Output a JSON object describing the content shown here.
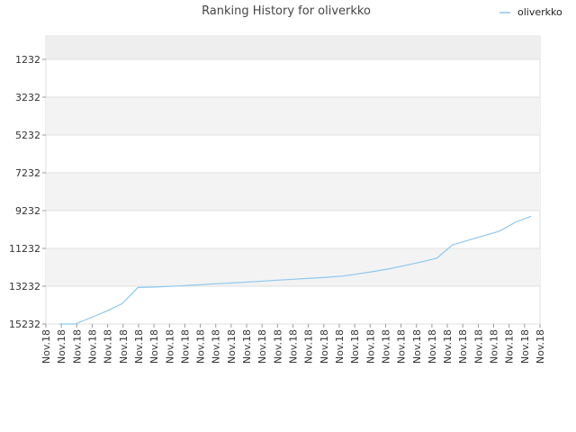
{
  "chart_data": {
    "type": "line",
    "title": "Ranking History for oliverkko",
    "xlabel": "",
    "ylabel": "",
    "y_inverted": true,
    "ylim": [
      15232,
      1232
    ],
    "y_ticks": [
      1232,
      3232,
      5232,
      7232,
      9232,
      11232,
      13232,
      15232
    ],
    "y_tick_labels": [
      "1232",
      "3232",
      "5232",
      "7232",
      "9232",
      "11232",
      "13232",
      "15232"
    ],
    "x_tick_labels": [
      "Nov.18",
      "Nov.18",
      "Nov.18",
      "Nov.18",
      "Nov.18",
      "Nov.18",
      "Nov.18",
      "Nov.18",
      "Nov.18",
      "Nov.18",
      "Nov.18",
      "Nov.18",
      "Nov.18",
      "Nov.18",
      "Nov.18",
      "Nov.18",
      "Nov.18",
      "Nov.18",
      "Nov.18",
      "Nov.18",
      "Nov.18",
      "Nov.18",
      "Nov.18",
      "Nov.18",
      "Nov.18",
      "Nov.18",
      "Nov.18",
      "Nov.18",
      "Nov.18",
      "Nov.18",
      "Nov.18",
      "Nov.18",
      "Nov.18"
    ],
    "grid": true,
    "banded_background": true,
    "legend_position": "top-right",
    "series": [
      {
        "name": "oliverkko",
        "color": "#8ec7f0",
        "values": [
          15232,
          15232,
          14900,
          14550,
          14150,
          13300,
          13280,
          13240,
          13200,
          13150,
          13100,
          13060,
          13010,
          12960,
          12910,
          12860,
          12810,
          12760,
          12700,
          12580,
          12450,
          12310,
          12130,
          11950,
          11750,
          11050,
          10800,
          10560,
          10320,
          9850,
          9530
        ]
      }
    ]
  }
}
